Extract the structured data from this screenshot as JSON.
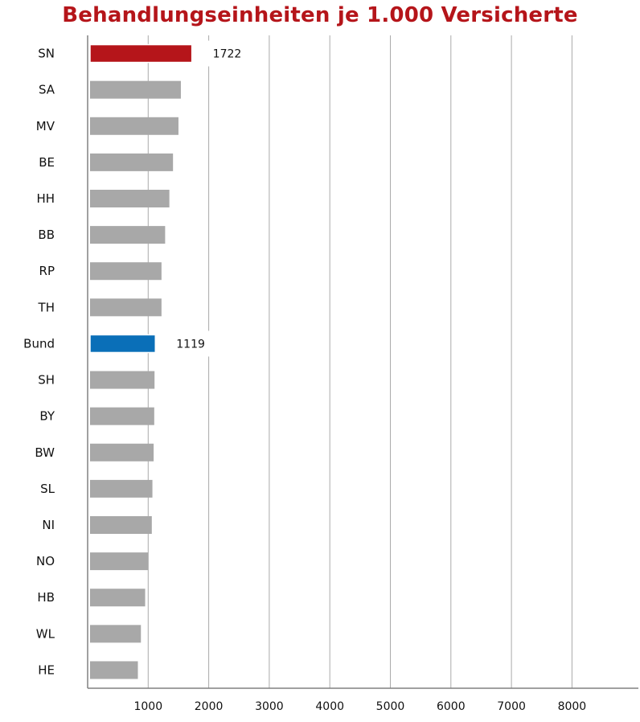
{
  "chart_data": {
    "type": "bar",
    "orientation": "horizontal",
    "title": "Behandlungseinheiten  je 1.000 Versicherte",
    "categories": [
      "SN",
      "SA",
      "MV",
      "BE",
      "HH",
      "BB",
      "RP",
      "TH",
      "Bund",
      "SH",
      "BY",
      "BW",
      "SL",
      "NI",
      "NO",
      "HB",
      "WL",
      "HE"
    ],
    "values": [
      1722,
      1540,
      1500,
      1410,
      1350,
      1280,
      1220,
      1220,
      1119,
      1105,
      1100,
      1090,
      1070,
      1060,
      1000,
      950,
      880,
      830
    ],
    "data_labels": [
      {
        "category": "SN",
        "text": "1722"
      },
      {
        "category": "Bund",
        "text": "1119"
      }
    ],
    "xlim": [
      0,
      9000
    ],
    "x_ticks": [
      1000,
      2000,
      3000,
      4000,
      5000,
      6000,
      7000,
      8000
    ],
    "x_tick_labels": [
      "1000",
      "2000",
      "3000",
      "4000",
      "5000",
      "6000",
      "7000",
      "8000"
    ],
    "grid": "vertical",
    "legend": "none",
    "colors": {
      "default": "#a8a8a8",
      "highlight_max": "#b5151a",
      "highlight_reference": "#0a6fb8",
      "grid": "#aaaaaa",
      "title": "#b5151a"
    },
    "highlight": {
      "SN": "highlight_max",
      "Bund": "highlight_reference"
    }
  }
}
